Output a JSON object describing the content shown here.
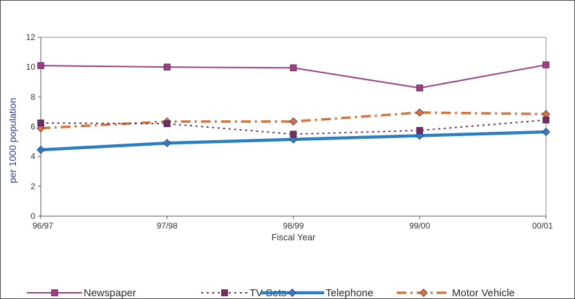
{
  "chart_data": {
    "type": "line",
    "title": "",
    "xlabel": "Fiscal Year",
    "ylabel": "per 1000 population",
    "categories": [
      "96/97",
      "97/98",
      "98/99",
      "99/00",
      "00/01"
    ],
    "ylim": [
      0,
      12
    ],
    "yticks": [
      "0",
      "2",
      "4",
      "6",
      "8",
      "10",
      "12"
    ],
    "grid": false,
    "legend_position": "bottom",
    "series": [
      {
        "name": "Newspaper",
        "values": [
          10.1,
          10.0,
          9.95,
          8.6,
          10.15
        ],
        "color": "#9c3f86",
        "marker": "square",
        "line_style": "solid"
      },
      {
        "name": "TV Sets",
        "values": [
          6.25,
          6.2,
          5.5,
          5.75,
          6.45
        ],
        "color": "#6b2f60",
        "marker": "square",
        "line_style": "dotted"
      },
      {
        "name": "Telephone",
        "values": [
          4.45,
          4.9,
          5.15,
          5.4,
          5.65
        ],
        "color": "#2a7fc4",
        "marker": "diamond",
        "line_style": "solid-thick"
      },
      {
        "name": "Motor Vehicle",
        "values": [
          5.9,
          6.35,
          6.35,
          6.95,
          6.85
        ],
        "color": "#d4733a",
        "marker": "diamond",
        "line_style": "dash-dot"
      }
    ]
  }
}
